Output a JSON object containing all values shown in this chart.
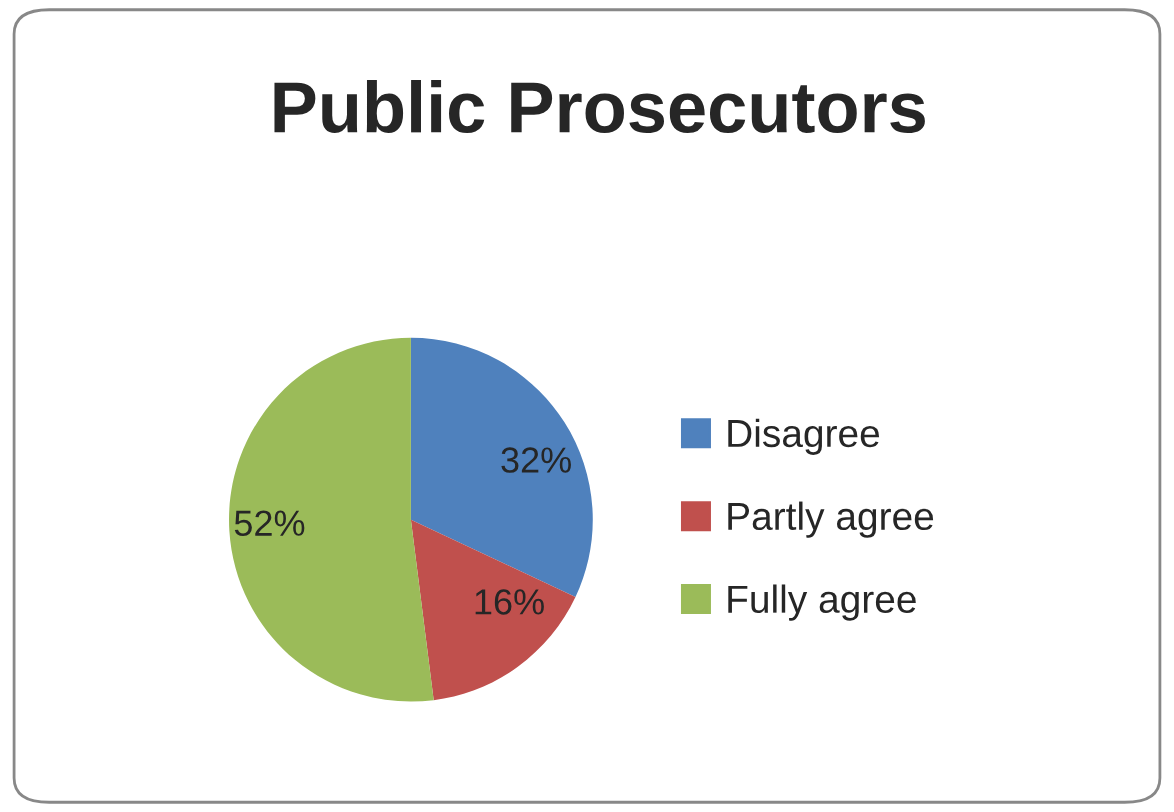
{
  "chart_data": {
    "type": "pie",
    "title": "Public Prosecutors",
    "categories": [
      "Disagree",
      "Partly agree",
      "Fully agree"
    ],
    "values": [
      32,
      16,
      52
    ],
    "colors": [
      "#4f81bd",
      "#c0504d",
      "#9bbb59"
    ],
    "value_labels": [
      "32%",
      "16%",
      "52%"
    ],
    "legend": "right"
  }
}
